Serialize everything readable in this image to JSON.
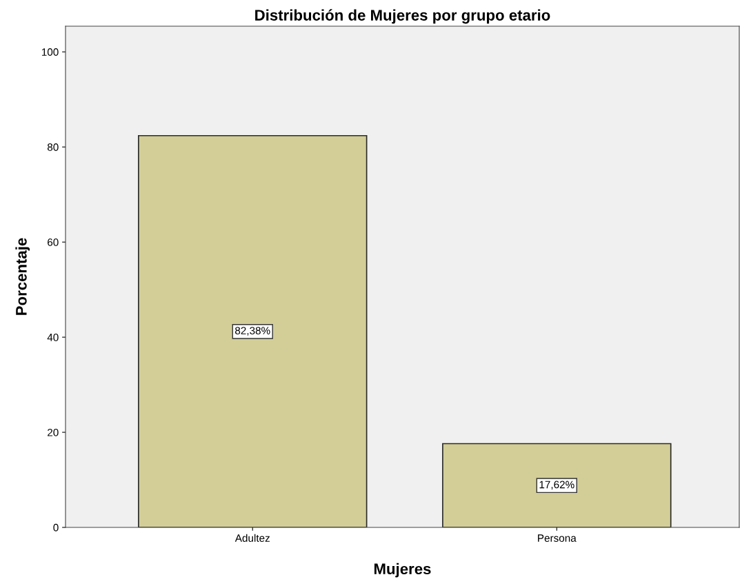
{
  "chart_data": {
    "type": "bar",
    "title": "Distribución de Mujeres por grupo etario",
    "xlabel": "Mujeres",
    "ylabel": "Porcentaje",
    "categories": [
      "Adultez",
      "Persona"
    ],
    "values": [
      82.38,
      17.62
    ],
    "value_labels": [
      "82,38%",
      "17,62%"
    ],
    "color": "#d3ce97",
    "ylim": [
      0,
      105.4
    ],
    "yticks": [
      0,
      20,
      40,
      60,
      80,
      100
    ],
    "grid": false,
    "legend": false
  }
}
